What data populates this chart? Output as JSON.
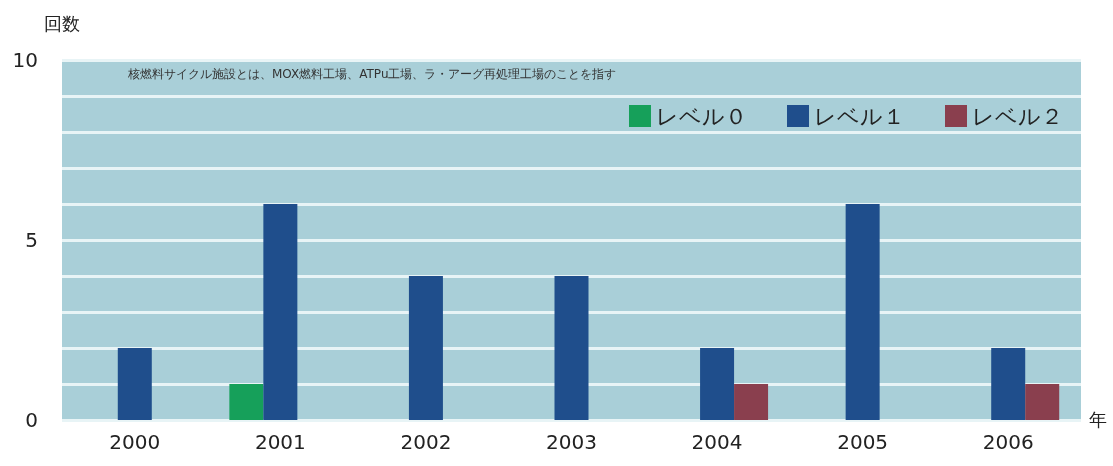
{
  "chart_data": {
    "type": "bar",
    "ylabel": "回数",
    "xlabel": "年",
    "annotations": [
      "核燃料サイクル施設とは、MOX燃料工場、ATPu工場、ラ・アーグ再処理工場のことを指す"
    ],
    "categories": [
      "2000",
      "2001",
      "2002",
      "2003",
      "2004",
      "2005",
      "2006"
    ],
    "series": [
      {
        "name": "レベル０",
        "color": "#16a05a",
        "values": [
          0,
          1,
          0,
          0,
          0,
          0,
          0
        ]
      },
      {
        "name": "レベル１",
        "color": "#1f4e8c",
        "values": [
          2,
          6,
          4,
          4,
          2,
          6,
          2
        ]
      },
      {
        "name": "レベル２",
        "color": "#8a3f4e",
        "values": [
          0,
          0,
          0,
          0,
          1,
          0,
          1
        ]
      }
    ],
    "ylim": [
      0,
      10
    ],
    "yticks": [
      0,
      {
        "value": 1,
        "label": null
      },
      {
        "value": 2,
        "label": null
      },
      {
        "value": 3,
        "label": null
      },
      {
        "value": 4,
        "label": null
      },
      5,
      {
        "value": 6,
        "label": null
      },
      {
        "value": 7,
        "label": null
      },
      {
        "value": 8,
        "label": null
      },
      {
        "value": 9,
        "label": null
      },
      10
    ],
    "grid": "y",
    "legend": "top right"
  }
}
